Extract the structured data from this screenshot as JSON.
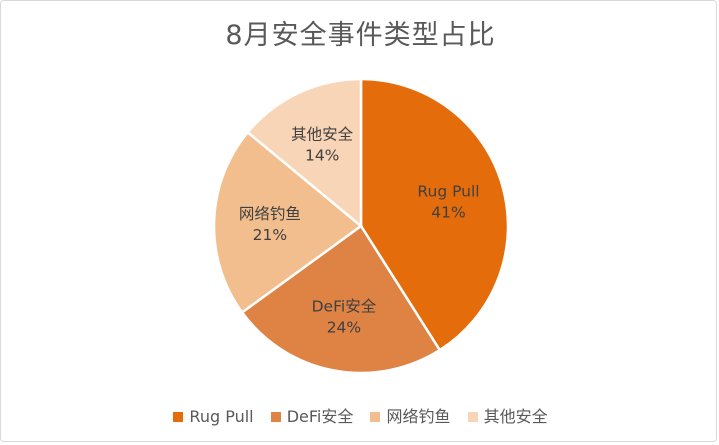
{
  "chart_data": {
    "type": "pie",
    "title": "8月安全事件类型占比",
    "categories": [
      "Rug Pull",
      "DeFi安全",
      "网络钓鱼",
      "其他安全"
    ],
    "values": [
      41,
      24,
      21,
      14
    ],
    "labels": [
      "41%",
      "24%",
      "21%",
      "14%"
    ],
    "colors": [
      "#E46C0A",
      "#DE8344",
      "#F2BE8D",
      "#F8D5B6"
    ],
    "legend_position": "bottom"
  }
}
